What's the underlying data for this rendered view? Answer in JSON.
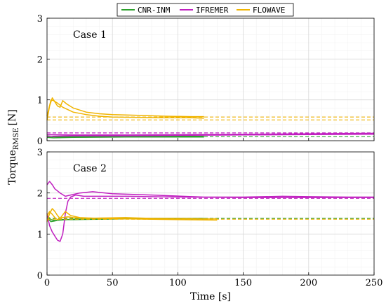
{
  "chart_data": [
    {
      "type": "line",
      "panel": "top",
      "annotation": "Case 1",
      "xlim": [
        0,
        250
      ],
      "ylim": [
        0,
        3
      ],
      "xticks": [
        0,
        50,
        100,
        150,
        200,
        250
      ],
      "yticks": [
        0,
        1,
        2,
        3
      ],
      "grid": true,
      "series": [
        {
          "name": "CNR-INM",
          "color": "#2ca02c",
          "style": "solid",
          "x": [
            0,
            5,
            20,
            60,
            100,
            120
          ],
          "y": [
            0.12,
            0.1,
            0.1,
            0.11,
            0.11,
            0.11
          ]
        },
        {
          "name": "CNR-INM",
          "color": "#2ca02c",
          "style": "solid",
          "x": [
            0,
            5,
            20,
            60,
            100,
            120
          ],
          "y": [
            0.08,
            0.07,
            0.08,
            0.09,
            0.09,
            0.09
          ]
        },
        {
          "name": "CNR-INM",
          "color": "#2ca02c",
          "style": "dashed",
          "x": [
            0,
            250
          ],
          "y": [
            0.1,
            0.1
          ]
        },
        {
          "name": "IFREMER",
          "color": "#c020c0",
          "style": "solid",
          "x": [
            0,
            20,
            60,
            100,
            150,
            200,
            250
          ],
          "y": [
            0.15,
            0.14,
            0.14,
            0.15,
            0.16,
            0.17,
            0.18
          ]
        },
        {
          "name": "IFREMER",
          "color": "#c020c0",
          "style": "solid",
          "x": [
            0,
            20,
            60,
            100,
            150,
            200,
            250
          ],
          "y": [
            0.11,
            0.12,
            0.12,
            0.13,
            0.14,
            0.15,
            0.16
          ]
        },
        {
          "name": "IFREMER",
          "color": "#c020c0",
          "style": "dashed",
          "x": [
            0,
            250
          ],
          "y": [
            0.19,
            0.19
          ]
        },
        {
          "name": "FLOWAVE",
          "color": "#f0b400",
          "style": "solid",
          "x": [
            0,
            2,
            4,
            6,
            8,
            10,
            12,
            15,
            20,
            30,
            40,
            50,
            70,
            90,
            110,
            120
          ],
          "y": [
            0.5,
            0.85,
            1.05,
            0.95,
            0.85,
            0.82,
            0.98,
            0.9,
            0.8,
            0.7,
            0.66,
            0.64,
            0.62,
            0.6,
            0.59,
            0.59
          ]
        },
        {
          "name": "FLOWAVE",
          "color": "#f0b400",
          "style": "solid",
          "x": [
            0,
            3,
            5,
            8,
            12,
            20,
            30,
            40,
            50,
            70,
            90,
            110,
            120
          ],
          "y": [
            0.6,
            1.0,
            0.98,
            0.92,
            0.82,
            0.7,
            0.64,
            0.6,
            0.58,
            0.57,
            0.56,
            0.56,
            0.55
          ]
        },
        {
          "name": "FLOWAVE",
          "color": "#f0b400",
          "style": "dashed",
          "x": [
            0,
            250
          ],
          "y": [
            0.58,
            0.58
          ]
        },
        {
          "name": "FLOWAVE",
          "color": "#f0b400",
          "style": "dashed",
          "x": [
            0,
            250
          ],
          "y": [
            0.51,
            0.51
          ]
        }
      ]
    },
    {
      "type": "line",
      "panel": "bottom",
      "annotation": "Case 2",
      "xlabel": "Time [s]",
      "ylabel": "Torque",
      "ylabel_subscript": "RMSE",
      "ylabel_unit": "[N]",
      "xlim": [
        0,
        250
      ],
      "ylim": [
        0,
        3
      ],
      "xticks": [
        0,
        50,
        100,
        150,
        200,
        250
      ],
      "yticks": [
        0,
        1,
        2,
        3
      ],
      "grid": true,
      "series": [
        {
          "name": "CNR-INM",
          "color": "#2ca02c",
          "style": "solid",
          "x": [
            0,
            3,
            6,
            10,
            20,
            40,
            60,
            80,
            100,
            120
          ],
          "y": [
            1.45,
            1.35,
            1.33,
            1.34,
            1.36,
            1.37,
            1.38,
            1.38,
            1.38,
            1.38
          ]
        },
        {
          "name": "CNR-INM",
          "color": "#2ca02c",
          "style": "solid",
          "x": [
            0,
            3,
            6,
            10,
            20,
            40,
            60,
            80,
            100,
            120
          ],
          "y": [
            1.4,
            1.3,
            1.32,
            1.35,
            1.35,
            1.36,
            1.37,
            1.37,
            1.37,
            1.37
          ]
        },
        {
          "name": "CNR-INM",
          "color": "#2ca02c",
          "style": "dashed",
          "x": [
            0,
            250
          ],
          "y": [
            1.38,
            1.38
          ]
        },
        {
          "name": "IFREMER",
          "color": "#c020c0",
          "style": "solid",
          "x": [
            0,
            2,
            4,
            6,
            8,
            10,
            14,
            18,
            25,
            35,
            50,
            80,
            120,
            150,
            180,
            200,
            230,
            250
          ],
          "y": [
            2.2,
            2.28,
            2.2,
            2.1,
            2.05,
            2.0,
            1.92,
            1.95,
            2.0,
            2.03,
            1.98,
            1.95,
            1.9,
            1.9,
            1.92,
            1.91,
            1.9,
            1.9
          ]
        },
        {
          "name": "IFREMER",
          "color": "#c020c0",
          "style": "solid",
          "x": [
            0,
            2,
            4,
            6,
            8,
            10,
            12,
            14,
            16,
            18,
            22,
            28,
            40,
            60,
            100,
            150,
            200,
            250
          ],
          "y": [
            1.5,
            1.2,
            1.05,
            0.95,
            0.85,
            0.82,
            1.0,
            1.5,
            1.8,
            1.9,
            1.95,
            1.92,
            1.92,
            1.92,
            1.9,
            1.89,
            1.89,
            1.89
          ]
        },
        {
          "name": "IFREMER",
          "color": "#c020c0",
          "style": "dashed",
          "x": [
            0,
            250
          ],
          "y": [
            1.87,
            1.87
          ]
        },
        {
          "name": "FLOWAVE",
          "color": "#f0b400",
          "style": "solid",
          "x": [
            0,
            2,
            4,
            6,
            8,
            10,
            12,
            16,
            20,
            30,
            40,
            60,
            80,
            100,
            120,
            130
          ],
          "y": [
            1.3,
            1.5,
            1.62,
            1.55,
            1.45,
            1.38,
            1.4,
            1.42,
            1.4,
            1.38,
            1.39,
            1.4,
            1.38,
            1.38,
            1.37,
            1.37
          ]
        },
        {
          "name": "FLOWAVE",
          "color": "#f0b400",
          "style": "solid",
          "x": [
            0,
            2,
            4,
            6,
            8,
            10,
            14,
            18,
            25,
            40,
            60,
            80,
            100,
            130
          ],
          "y": [
            1.45,
            1.55,
            1.48,
            1.4,
            1.35,
            1.38,
            1.55,
            1.45,
            1.4,
            1.38,
            1.37,
            1.36,
            1.35,
            1.34
          ]
        },
        {
          "name": "FLOWAVE",
          "color": "#f0b400",
          "style": "dashed",
          "x": [
            0,
            250
          ],
          "y": [
            1.36,
            1.36
          ]
        }
      ]
    }
  ],
  "legend": {
    "position": "top-center",
    "entries": [
      {
        "label": "CNR-INM",
        "color": "#2ca02c"
      },
      {
        "label": "IFREMER",
        "color": "#c020c0"
      },
      {
        "label": "FLOWAVE",
        "color": "#f0b400"
      }
    ]
  }
}
